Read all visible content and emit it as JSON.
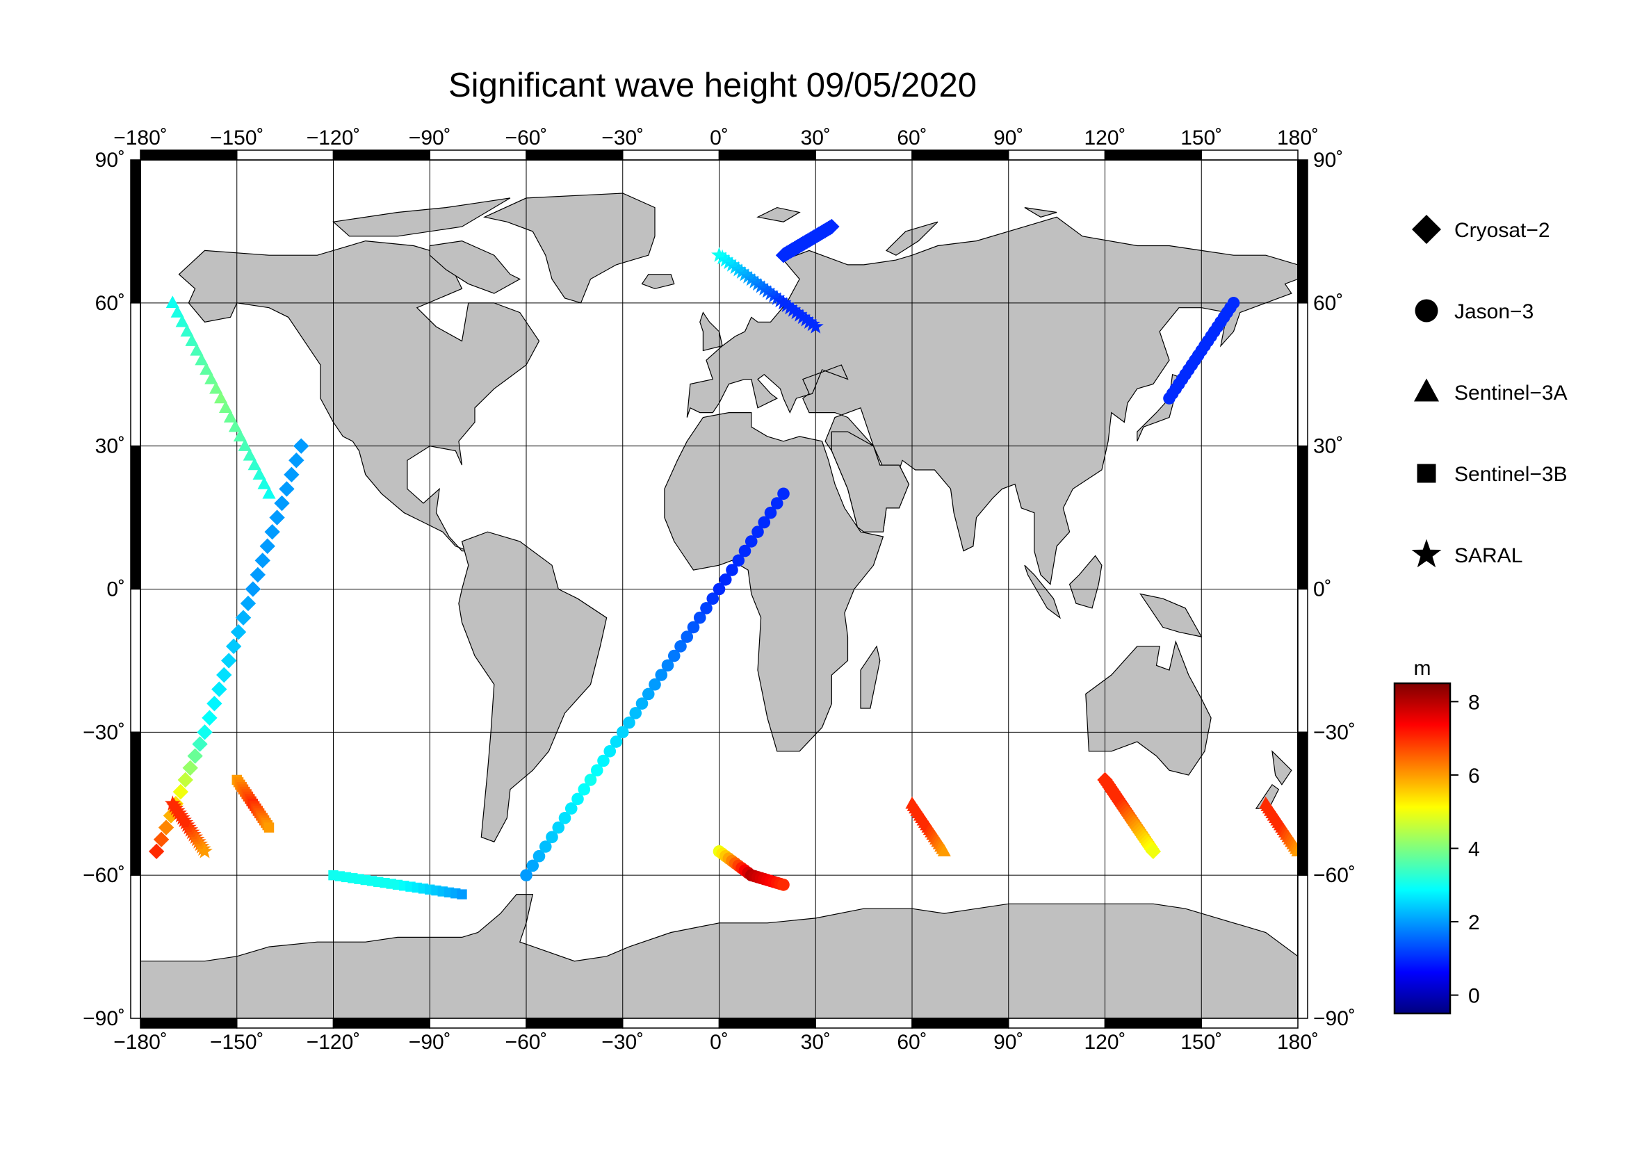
{
  "title": "Significant wave height 09/05/2020",
  "map": {
    "lon_ticks": [
      -180,
      -150,
      -120,
      -90,
      -60,
      -30,
      0,
      30,
      60,
      90,
      120,
      150,
      180
    ],
    "lat_ticks": [
      90,
      60,
      30,
      0,
      -30,
      -60,
      -90
    ],
    "lon_labels": [
      "−180˚",
      "−150˚",
      "−120˚",
      "−90˚",
      "−60˚",
      "−30˚",
      "0˚",
      "30˚",
      "60˚",
      "90˚",
      "120˚",
      "150˚",
      "180˚"
    ],
    "lat_labels": [
      "90˚",
      "60˚",
      "30˚",
      "0˚",
      "−30˚",
      "−60˚",
      "−90˚"
    ],
    "land_color": "#c0c0c0",
    "ocean_color": "#ffffff"
  },
  "legend": {
    "items": [
      {
        "label": "Cryosat−2",
        "symbol": "diamond-icon"
      },
      {
        "label": "Jason−3",
        "symbol": "circle-icon"
      },
      {
        "label": "Sentinel−3A",
        "symbol": "triangle-icon"
      },
      {
        "label": "Sentinel−3B",
        "symbol": "square-icon"
      },
      {
        "label": "SARAL",
        "symbol": "star-icon"
      }
    ]
  },
  "colorbar": {
    "unit": "m",
    "min": -0.5,
    "max": 8.5,
    "ticks": [
      8,
      6,
      4,
      2,
      0
    ],
    "colormap": [
      "#00007f",
      "#0000ff",
      "#007fff",
      "#00ffff",
      "#7fff7f",
      "#ffff00",
      "#ff7f00",
      "#ff0000",
      "#7f0000"
    ]
  },
  "chart_data": {
    "type": "scatter",
    "title": "Significant wave height 09/05/2020",
    "xlim": [
      -180,
      180
    ],
    "ylim": [
      -90,
      90
    ],
    "value_unit": "m",
    "value_range": [
      0,
      8.5
    ],
    "series": [
      {
        "name": "Cryosat−2",
        "marker": "diamond",
        "tracks": [
          {
            "lon": [
              -175,
              -160,
              -145,
              -130
            ],
            "lat": [
              -55,
              -30,
              0,
              30
            ],
            "hs": [
              7,
              3,
              2,
              2
            ]
          },
          {
            "lon": [
              120,
              125,
              130,
              135
            ],
            "lat": [
              -40,
              -45,
              -50,
              -55
            ],
            "hs": [
              7,
              7,
              6,
              5
            ]
          },
          {
            "lon": [
              20,
              25,
              30,
              35
            ],
            "lat": [
              70,
              72,
              74,
              76
            ],
            "hs": [
              1,
              1,
              1,
              1
            ]
          }
        ]
      },
      {
        "name": "Jason−3",
        "marker": "circle",
        "tracks": [
          {
            "lon": [
              -60,
              -40,
              -20,
              0,
              20
            ],
            "lat": [
              -60,
              -40,
              -20,
              0,
              20
            ],
            "hs": [
              2,
              3,
              2,
              1,
              1
            ]
          },
          {
            "lon": [
              0,
              10,
              20
            ],
            "lat": [
              -55,
              -60,
              -62
            ],
            "hs": [
              5,
              8,
              7
            ]
          },
          {
            "lon": [
              140,
              150,
              160
            ],
            "lat": [
              40,
              50,
              60
            ],
            "hs": [
              1,
              1,
              1
            ]
          }
        ]
      },
      {
        "name": "Sentinel−3A",
        "marker": "triangle",
        "tracks": [
          {
            "lon": [
              -170,
              -155,
              -140
            ],
            "lat": [
              60,
              40,
              20
            ],
            "hs": [
              3,
              4,
              3
            ]
          },
          {
            "lon": [
              60,
              65,
              70
            ],
            "lat": [
              -45,
              -50,
              -55
            ],
            "hs": [
              7,
              7,
              6
            ]
          },
          {
            "lon": [
              170,
              175,
              180
            ],
            "lat": [
              -45,
              -50,
              -55
            ],
            "hs": [
              7,
              7,
              6
            ]
          }
        ]
      },
      {
        "name": "Sentinel−3B",
        "marker": "square",
        "tracks": [
          {
            "lon": [
              -120,
              -100,
              -80
            ],
            "lat": [
              -60,
              -62,
              -64
            ],
            "hs": [
              3,
              3,
              2
            ]
          },
          {
            "lon": [
              -150,
              -145,
              -140
            ],
            "lat": [
              -40,
              -45,
              -50
            ],
            "hs": [
              6,
              7,
              6
            ]
          }
        ]
      },
      {
        "name": "SARAL",
        "marker": "star",
        "tracks": [
          {
            "lon": [
              0,
              10,
              20,
              30
            ],
            "lat": [
              70,
              65,
              60,
              55
            ],
            "hs": [
              3,
              2,
              1,
              1
            ]
          },
          {
            "lon": [
              -170,
              -165,
              -160
            ],
            "lat": [
              -45,
              -50,
              -55
            ],
            "hs": [
              7,
              7,
              6
            ]
          }
        ]
      }
    ]
  }
}
